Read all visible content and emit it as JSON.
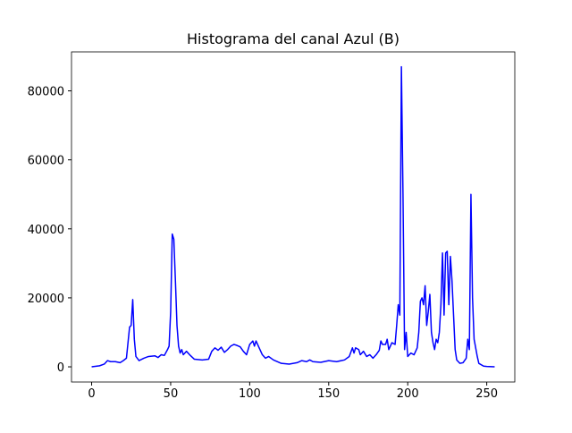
{
  "chart_data": {
    "type": "line",
    "title": "Histograma del canal Azul (B)",
    "x": [
      0,
      5,
      8,
      10,
      12,
      15,
      18,
      20,
      22,
      24,
      25,
      26,
      27,
      28,
      30,
      33,
      36,
      40,
      42,
      44,
      46,
      48,
      49,
      50,
      51,
      52,
      53,
      54,
      55,
      56,
      57,
      58,
      60,
      62,
      65,
      70,
      74,
      76,
      78,
      80,
      82,
      84,
      86,
      88,
      90,
      92,
      94,
      96,
      98,
      100,
      102,
      103,
      104,
      106,
      108,
      110,
      112,
      115,
      120,
      125,
      130,
      133,
      136,
      138,
      140,
      145,
      150,
      155,
      160,
      163,
      165,
      166,
      167,
      169,
      170,
      172,
      174,
      176,
      178,
      180,
      182,
      183,
      184,
      186,
      187,
      188,
      190,
      192,
      193,
      194,
      195,
      196,
      197,
      198,
      199,
      200,
      202,
      204,
      206,
      207,
      208,
      209,
      210,
      211,
      212,
      213,
      214,
      215,
      216,
      217,
      218,
      219,
      220,
      221,
      222,
      223,
      224,
      225,
      226,
      227,
      228,
      229,
      230,
      231,
      233,
      235,
      237,
      238,
      239,
      240,
      241,
      242,
      244,
      245,
      248,
      250,
      255
    ],
    "series": [
      {
        "color": "#0000ff",
        "values": [
          0,
          300,
          800,
          1800,
          1500,
          1500,
          1200,
          1800,
          2500,
          11500,
          12000,
          19500,
          8000,
          3000,
          1800,
          2500,
          3000,
          3200,
          2700,
          3500,
          3300,
          5000,
          6000,
          16000,
          38500,
          37000,
          25000,
          12000,
          6000,
          4000,
          5000,
          3500,
          4500,
          3500,
          2200,
          2000,
          2200,
          4500,
          5500,
          4800,
          5700,
          4200,
          5000,
          6000,
          6500,
          6200,
          5800,
          4500,
          3500,
          6500,
          7500,
          6000,
          7500,
          5500,
          3500,
          2500,
          3000,
          2000,
          1000,
          800,
          1200,
          1800,
          1500,
          2000,
          1500,
          1300,
          1800,
          1500,
          2000,
          3000,
          5500,
          4000,
          5500,
          5000,
          3500,
          4500,
          3000,
          3500,
          2500,
          3500,
          4800,
          7500,
          6500,
          6500,
          8000,
          5000,
          7000,
          6500,
          12000,
          18000,
          15000,
          87000,
          50000,
          5000,
          10000,
          3000,
          4000,
          3500,
          5500,
          10000,
          19000,
          20000,
          18000,
          23500,
          12000,
          16000,
          21000,
          10000,
          7000,
          5000,
          8000,
          7000,
          10000,
          18000,
          33000,
          15000,
          33000,
          33500,
          18000,
          32000,
          25000,
          15000,
          5000,
          2000,
          1000,
          1200,
          2500,
          8000,
          5000,
          50000,
          20000,
          8000,
          3000,
          1000,
          200,
          100,
          0
        ]
      }
    ],
    "xlim": [
      -12.75,
      267.75
    ],
    "ylim": [
      -4400,
      91300
    ],
    "xticks": [
      0,
      50,
      100,
      150,
      200,
      250
    ],
    "yticks": [
      0,
      20000,
      40000,
      60000,
      80000
    ],
    "grid": false
  }
}
